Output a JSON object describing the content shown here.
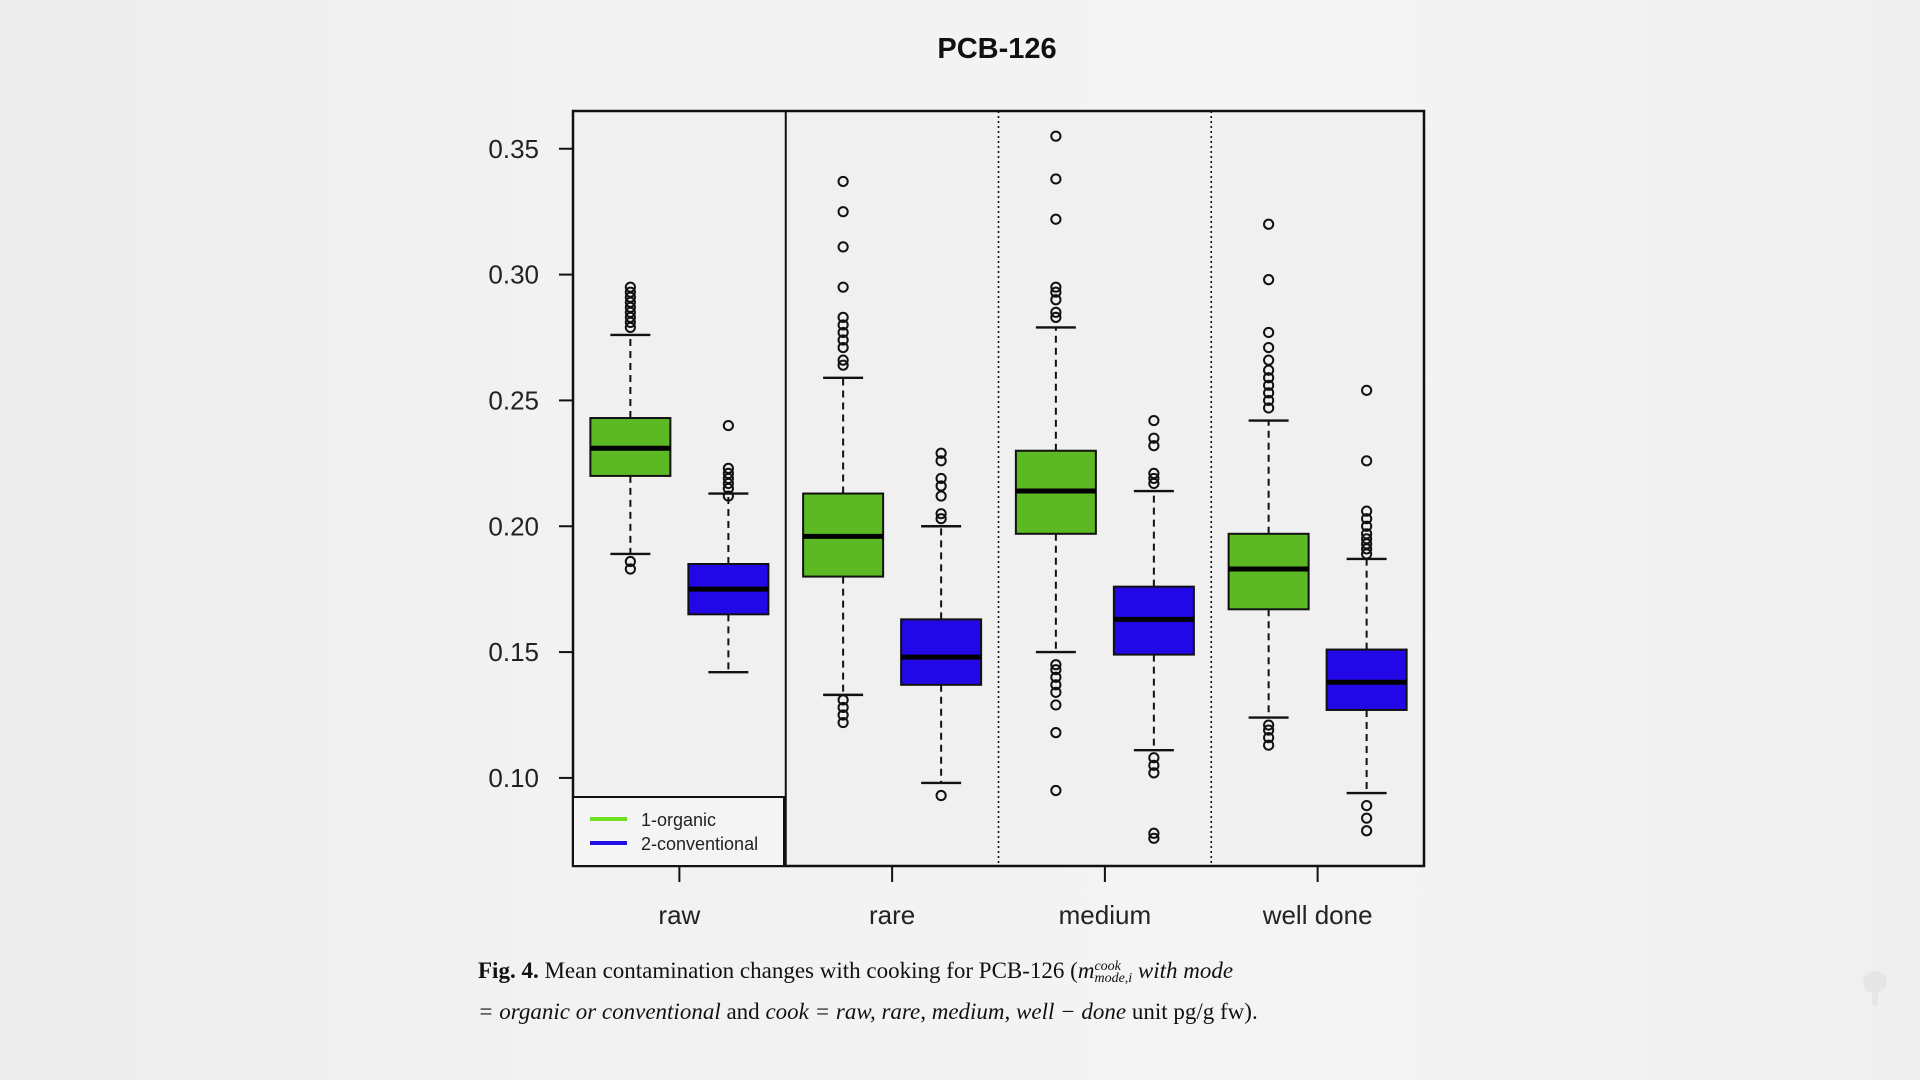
{
  "chart_data": {
    "type": "box",
    "title": "PCB-126",
    "xlabel": "",
    "ylabel": "",
    "ylim": [
      0.065,
      0.365
    ],
    "yticks": [
      "0.10",
      "0.15",
      "0.20",
      "0.25",
      "0.30",
      "0.35"
    ],
    "categories": [
      "raw",
      "rare",
      "medium",
      "well done"
    ],
    "grid": false,
    "separators": [
      {
        "after": "raw",
        "style": "solid"
      },
      {
        "after": "rare",
        "style": "dotted"
      },
      {
        "after": "medium",
        "style": "dotted"
      }
    ],
    "legend": {
      "position": "bottom-left",
      "entries": [
        {
          "label": "1-organic",
          "color": "#6fe022"
        },
        {
          "label": "2-conventional",
          "color": "#1f0fe6"
        }
      ]
    },
    "series": [
      {
        "name": "1-organic",
        "color": "#5cb823",
        "boxes": [
          {
            "category": "raw",
            "whisker_low": 0.189,
            "q1": 0.22,
            "median": 0.231,
            "q3": 0.243,
            "whisker_high": 0.276,
            "outliers": [
              0.183,
              0.186,
              0.279,
              0.281,
              0.283,
              0.285,
              0.287,
              0.289,
              0.291,
              0.293,
              0.295
            ]
          },
          {
            "category": "rare",
            "whisker_low": 0.133,
            "q1": 0.18,
            "median": 0.196,
            "q3": 0.213,
            "whisker_high": 0.259,
            "outliers": [
              0.122,
              0.125,
              0.128,
              0.131,
              0.264,
              0.266,
              0.271,
              0.274,
              0.277,
              0.28,
              0.283,
              0.295,
              0.311,
              0.325,
              0.337
            ]
          },
          {
            "category": "medium",
            "whisker_low": 0.15,
            "q1": 0.197,
            "median": 0.214,
            "q3": 0.23,
            "whisker_high": 0.279,
            "outliers": [
              0.095,
              0.118,
              0.129,
              0.134,
              0.137,
              0.14,
              0.143,
              0.145,
              0.283,
              0.285,
              0.29,
              0.293,
              0.295,
              0.322,
              0.338,
              0.355
            ]
          },
          {
            "category": "well done",
            "whisker_low": 0.124,
            "q1": 0.167,
            "median": 0.183,
            "q3": 0.197,
            "whisker_high": 0.242,
            "outliers": [
              0.113,
              0.116,
              0.119,
              0.121,
              0.247,
              0.25,
              0.253,
              0.256,
              0.259,
              0.262,
              0.266,
              0.271,
              0.277,
              0.298,
              0.32
            ]
          }
        ]
      },
      {
        "name": "2-conventional",
        "color": "#2208e6",
        "boxes": [
          {
            "category": "raw",
            "whisker_low": 0.142,
            "q1": 0.165,
            "median": 0.175,
            "q3": 0.185,
            "whisker_high": 0.213,
            "outliers": [
              0.212,
              0.215,
              0.217,
              0.219,
              0.221,
              0.223,
              0.24
            ]
          },
          {
            "category": "rare",
            "whisker_low": 0.098,
            "q1": 0.137,
            "median": 0.148,
            "q3": 0.163,
            "whisker_high": 0.2,
            "outliers": [
              0.093,
              0.203,
              0.205,
              0.212,
              0.216,
              0.219,
              0.226,
              0.229
            ]
          },
          {
            "category": "medium",
            "whisker_low": 0.111,
            "q1": 0.149,
            "median": 0.163,
            "q3": 0.176,
            "whisker_high": 0.214,
            "outliers": [
              0.076,
              0.078,
              0.102,
              0.105,
              0.108,
              0.217,
              0.219,
              0.221,
              0.232,
              0.235,
              0.242
            ]
          },
          {
            "category": "well done",
            "whisker_low": 0.094,
            "q1": 0.127,
            "median": 0.138,
            "q3": 0.151,
            "whisker_high": 0.187,
            "outliers": [
              0.079,
              0.084,
              0.089,
              0.189,
              0.191,
              0.193,
              0.195,
              0.197,
              0.2,
              0.203,
              0.206,
              0.226,
              0.254
            ]
          }
        ]
      }
    ]
  },
  "caption": {
    "label": "Fig.  4.",
    "text1": "Mean contamination changes with cooking for PCB-126 (",
    "math_m": "m",
    "math_sup": "cook",
    "math_sub": "mode,i",
    "text2": " with mode",
    "text3": "= organic  or  conventional",
    "text4": " and ",
    "text5": "cook = raw,  rare,  medium, well − done",
    "text6": " unit pg/g fw)."
  }
}
